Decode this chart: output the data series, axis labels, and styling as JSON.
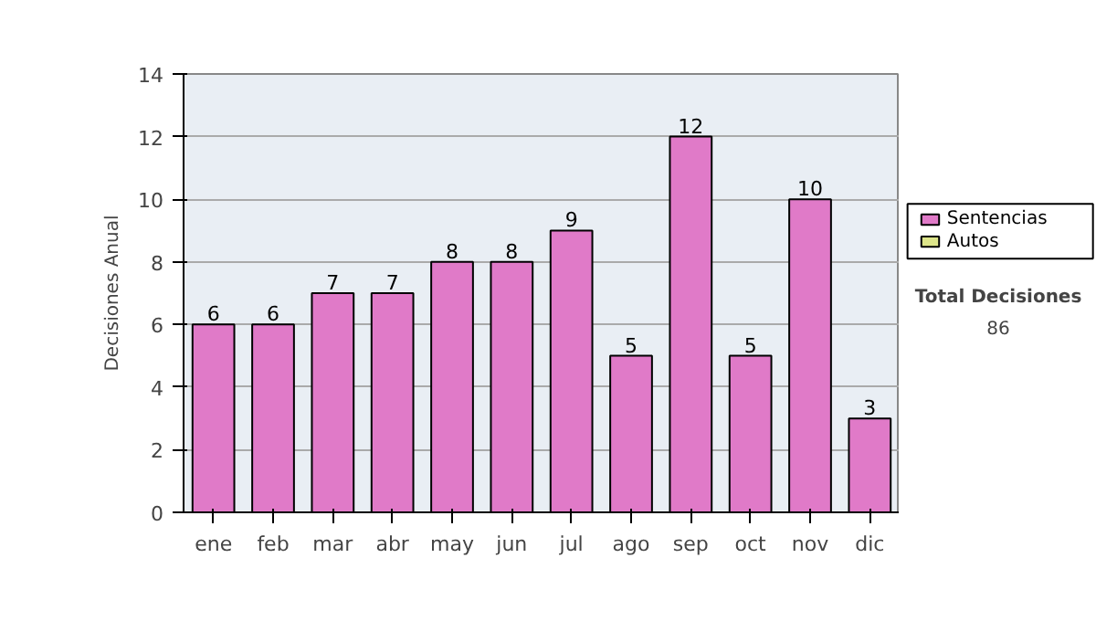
{
  "chart_data": {
    "type": "bar",
    "ylabel": "Decisiones Anual",
    "categories": [
      "ene",
      "feb",
      "mar",
      "abr",
      "may",
      "jun",
      "jul",
      "ago",
      "sep",
      "oct",
      "nov",
      "dic"
    ],
    "series": [
      {
        "name": "Sentencias",
        "color": "#e07ac8",
        "values": [
          6,
          6,
          7,
          7,
          8,
          8,
          9,
          5,
          12,
          5,
          10,
          3
        ]
      },
      {
        "name": "Autos",
        "color": "#dde58a",
        "values": [
          null,
          null,
          null,
          null,
          null,
          null,
          null,
          null,
          null,
          null,
          null,
          null
        ]
      }
    ],
    "ylim": [
      0,
      14
    ],
    "yticks": [
      0,
      2,
      4,
      6,
      8,
      10,
      12,
      14
    ],
    "grid": "y",
    "legend": "right",
    "data_labels": true,
    "annotations": [
      "Total Decisiones",
      "86"
    ]
  }
}
